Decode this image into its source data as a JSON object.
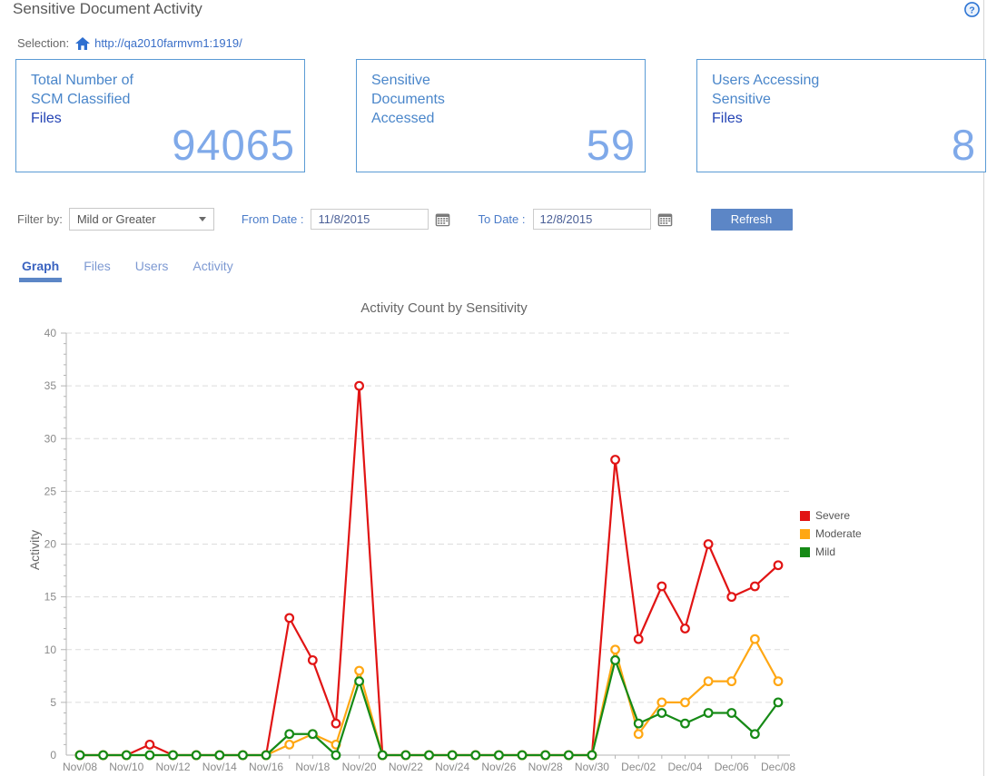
{
  "page": {
    "title": "Sensitive Document Activity"
  },
  "header": {
    "help_glyph": "?"
  },
  "selection": {
    "label": "Selection:",
    "url": "http://qa2010farmvm1:1919/"
  },
  "cards": [
    {
      "lines": [
        "Total Number of",
        "SCM Classified",
        "Files"
      ],
      "value": "94065"
    },
    {
      "lines": [
        "Sensitive",
        "Documents",
        "Accessed"
      ],
      "value": "59"
    },
    {
      "lines": [
        "Users Accessing",
        "Sensitive",
        "Files"
      ],
      "value": "8"
    }
  ],
  "filters": {
    "filter_by_label": "Filter by:",
    "filter_by_value": "Mild or Greater",
    "from_date_label": "From Date :",
    "from_date_value": "11/8/2015",
    "to_date_label": "To Date :",
    "to_date_value": "12/8/2015",
    "refresh_label": "Refresh"
  },
  "tabs": [
    {
      "label": "Graph",
      "active": true
    },
    {
      "label": "Files",
      "active": false
    },
    {
      "label": "Users",
      "active": false
    },
    {
      "label": "Activity",
      "active": false
    }
  ],
  "chart_data": {
    "type": "line",
    "title": "Activity Count by Sensitivity",
    "xlabel": "",
    "ylabel": "Activity",
    "ylim": [
      0,
      40
    ],
    "y_ticks": [
      0,
      5,
      10,
      15,
      20,
      25,
      30,
      35,
      40
    ],
    "grid": "horizontal-dashed",
    "legend_position": "right",
    "x": [
      "Nov/08",
      "Nov/09",
      "Nov/10",
      "Nov/11",
      "Nov/12",
      "Nov/13",
      "Nov/14",
      "Nov/15",
      "Nov/16",
      "Nov/17",
      "Nov/18",
      "Nov/19",
      "Nov/20",
      "Nov/21",
      "Nov/22",
      "Nov/23",
      "Nov/24",
      "Nov/25",
      "Nov/26",
      "Nov/27",
      "Nov/28",
      "Nov/29",
      "Nov/30",
      "Dec/01",
      "Dec/02",
      "Dec/03",
      "Dec/04",
      "Dec/05",
      "Dec/06",
      "Dec/07",
      "Dec/08"
    ],
    "x_tick_labels": [
      "Nov/08",
      "Nov/10",
      "Nov/12",
      "Nov/14",
      "Nov/16",
      "Nov/18",
      "Nov/20",
      "Nov/22",
      "Nov/24",
      "Nov/26",
      "Nov/28",
      "Nov/30",
      "Dec/02",
      "Dec/04",
      "Dec/06",
      "Dec/08"
    ],
    "series": [
      {
        "name": "Severe",
        "color": "#e11414",
        "values": [
          0,
          0,
          0,
          1,
          0,
          0,
          0,
          0,
          0,
          13,
          9,
          3,
          35,
          0,
          0,
          0,
          0,
          0,
          0,
          0,
          0,
          0,
          0,
          28,
          11,
          16,
          12,
          20,
          15,
          16,
          18
        ]
      },
      {
        "name": "Moderate",
        "color": "#ffa713",
        "values": [
          0,
          0,
          0,
          0,
          0,
          0,
          0,
          0,
          0,
          1,
          2,
          1,
          8,
          0,
          0,
          0,
          0,
          0,
          0,
          0,
          0,
          0,
          0,
          10,
          2,
          5,
          5,
          7,
          7,
          11,
          7
        ]
      },
      {
        "name": "Mild",
        "color": "#168a16",
        "values": [
          0,
          0,
          0,
          0,
          0,
          0,
          0,
          0,
          0,
          2,
          2,
          0,
          7,
          0,
          0,
          0,
          0,
          0,
          0,
          0,
          0,
          0,
          0,
          9,
          3,
          4,
          3,
          4,
          4,
          2,
          5
        ]
      }
    ]
  }
}
